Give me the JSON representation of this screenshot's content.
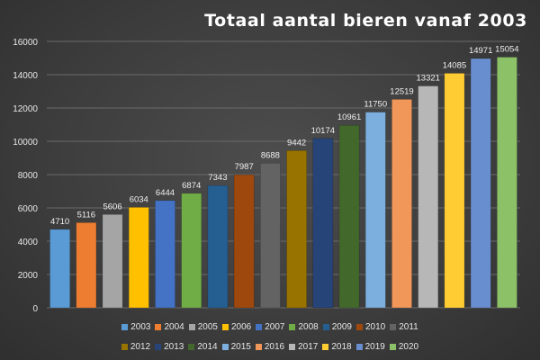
{
  "chart_data": {
    "type": "bar",
    "title": "Totaal aantal bieren vanaf 2003",
    "xlabel": "",
    "ylabel": "",
    "ylim": [
      0,
      16000
    ],
    "yticks": [
      "0",
      "2000",
      "4000",
      "6000",
      "8000",
      "10000",
      "12000",
      "14000",
      "16000"
    ],
    "grid": true,
    "legend_position": "bottom",
    "categories": [
      "2003",
      "2004",
      "2005",
      "2006",
      "2007",
      "2008",
      "2009",
      "2010",
      "2011",
      "2012",
      "2013",
      "2014",
      "2015",
      "2016",
      "2017",
      "2018",
      "2019",
      "2020"
    ],
    "values": [
      4710,
      5116,
      5606,
      6034,
      6444,
      6874,
      7343,
      7987,
      8688,
      9442,
      10174,
      10961,
      11750,
      12519,
      13321,
      14085,
      14971,
      15054
    ],
    "colors": [
      "#5b9bd5",
      "#ed7d31",
      "#a5a5a5",
      "#ffc000",
      "#4472c4",
      "#70ad47",
      "#255e91",
      "#9e480e",
      "#636363",
      "#997300",
      "#264478",
      "#43682b",
      "#7cafdd",
      "#f1975a",
      "#b7b7b7",
      "#ffcd33",
      "#698ed0",
      "#8cc168"
    ]
  }
}
